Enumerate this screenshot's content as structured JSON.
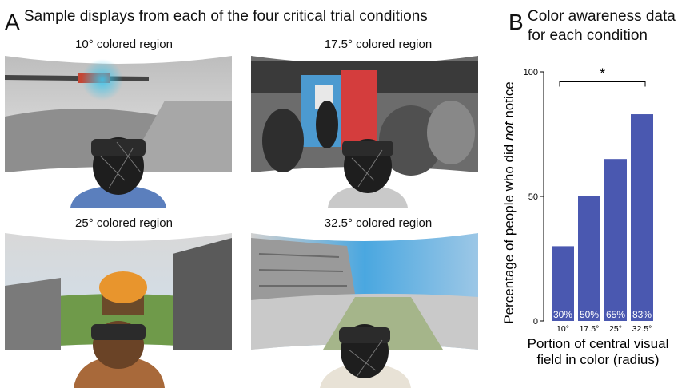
{
  "panel_a": {
    "letter": "A",
    "title": "Sample displays from each of the four critical trial conditions",
    "captions": [
      "10° colored region",
      "17.5° colored region",
      "25° colored region",
      "32.5° colored region"
    ]
  },
  "panel_b": {
    "letter": "B",
    "title_line1": "Color awareness data",
    "title_line2": "for each condition"
  },
  "chart_data": {
    "type": "bar",
    "categories": [
      "10°",
      "17.5°",
      "25°",
      "32.5°"
    ],
    "values": [
      30,
      50,
      65,
      83
    ],
    "value_labels": [
      "30%",
      "50%",
      "65%",
      "83%"
    ],
    "ylabel_prefix": "Percentage of people who did ",
    "ylabel_emph": "not",
    "ylabel_suffix": " notice",
    "xlabel_line1": "Portion of central visual",
    "xlabel_line2": "field in color (radius)",
    "ylim": [
      0,
      100
    ],
    "yticks": [
      0,
      50,
      100
    ],
    "significance_marker": "*",
    "bar_color": "#4a58b0",
    "grid": false
  }
}
